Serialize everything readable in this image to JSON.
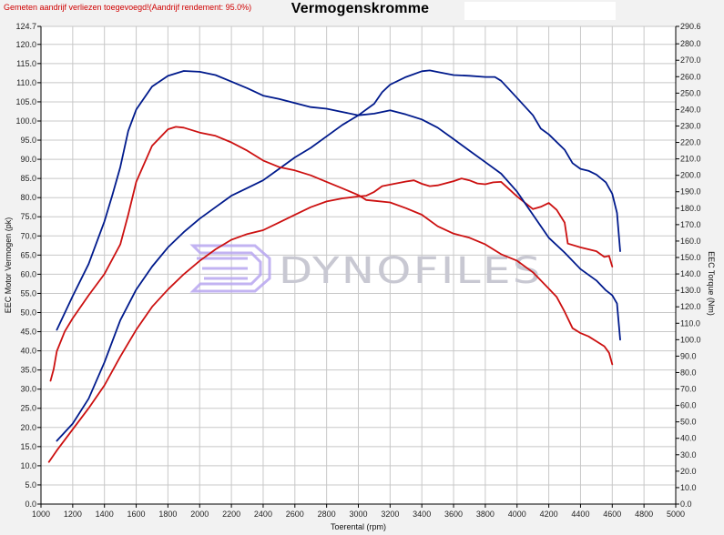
{
  "header": {
    "note": "Gemeten aandrijf verliezen toegevoegd!(Aandrijf rendement: 95.0%)",
    "title": "Vermogenskromme"
  },
  "watermark": {
    "text": "DYNOFILES"
  },
  "colors": {
    "blue": "#001a8c",
    "red": "#cc1010",
    "grid": "#c8c8c8",
    "plot_bg": "#ffffff",
    "watermark": "#c8c8d2",
    "watermark_logo": "#b8a6f0"
  },
  "chart_data": {
    "type": "line",
    "title": "Vermogenskromme",
    "xlabel": "Toerental (rpm)",
    "ylabel_left": "EEC Motor Vermogen (pk)",
    "ylabel_right": "EEC Torque (Nm)",
    "xlim": [
      1000,
      5000
    ],
    "ylim_left": [
      0,
      124.7
    ],
    "ylim_right": [
      0,
      290.6
    ],
    "grid": true,
    "x_ticks": [
      1000,
      1200,
      1400,
      1600,
      1800,
      2000,
      2200,
      2400,
      2600,
      2800,
      3000,
      3200,
      3400,
      3600,
      3800,
      4000,
      4200,
      4400,
      4600,
      4800,
      5000
    ],
    "y_left_ticks": [
      "124.7",
      "120.0",
      "115.0",
      "110.0",
      "105.0",
      "100.0",
      "95.0",
      "90.0",
      "85.0",
      "80.0",
      "75.0",
      "70.0",
      "65.0",
      "60.0",
      "55.0",
      "50.0",
      "45.0",
      "40.0",
      "35.0",
      "30.0",
      "25.0",
      "20.0",
      "15.0",
      "10.0",
      "5.0",
      "0.0"
    ],
    "y_right_ticks": [
      "290.6",
      "280.0",
      "270.0",
      "260.0",
      "250.0",
      "240.0",
      "230.0",
      "220.0",
      "210.0",
      "200.0",
      "190.0",
      "180.0",
      "170.0",
      "160.0",
      "150.0",
      "140.0",
      "130.0",
      "120.0",
      "110.0",
      "100.0",
      "90.0",
      "80.0",
      "70.0",
      "60.0",
      "50.0",
      "40.0",
      "30.0",
      "20.0",
      "10.0",
      "0.0"
    ],
    "series": [
      {
        "color": "blue",
        "axis": "left",
        "kind": "power",
        "points": [
          [
            1100,
            16.5
          ],
          [
            1200,
            21
          ],
          [
            1300,
            27.5
          ],
          [
            1400,
            37
          ],
          [
            1500,
            48
          ],
          [
            1600,
            56
          ],
          [
            1700,
            62
          ],
          [
            1800,
            67
          ],
          [
            1900,
            71
          ],
          [
            2000,
            74.5
          ],
          [
            2100,
            77.5
          ],
          [
            2200,
            80.5
          ],
          [
            2300,
            82.5
          ],
          [
            2400,
            84.5
          ],
          [
            2500,
            87.5
          ],
          [
            2600,
            90.5
          ],
          [
            2700,
            93
          ],
          [
            2800,
            96
          ],
          [
            2900,
            99
          ],
          [
            3000,
            101.5
          ],
          [
            3100,
            104.5
          ],
          [
            3150,
            107.5
          ],
          [
            3200,
            109.5
          ],
          [
            3300,
            111.5
          ],
          [
            3400,
            113
          ],
          [
            3450,
            113.2
          ],
          [
            3500,
            112.8
          ],
          [
            3600,
            112
          ],
          [
            3700,
            111.8
          ],
          [
            3800,
            111.5
          ],
          [
            3860,
            111.5
          ],
          [
            3900,
            110.5
          ],
          [
            4000,
            106
          ],
          [
            4100,
            101.5
          ],
          [
            4150,
            98
          ],
          [
            4200,
            96.5
          ],
          [
            4300,
            92.5
          ],
          [
            4350,
            89
          ],
          [
            4400,
            87.5
          ],
          [
            4450,
            87
          ],
          [
            4500,
            86
          ],
          [
            4560,
            84
          ],
          [
            4600,
            81
          ],
          [
            4630,
            76
          ],
          [
            4650,
            66
          ]
        ]
      },
      {
        "color": "red",
        "axis": "left",
        "kind": "power",
        "points": [
          [
            1050,
            11
          ],
          [
            1100,
            14
          ],
          [
            1200,
            19.5
          ],
          [
            1300,
            25
          ],
          [
            1400,
            31
          ],
          [
            1500,
            38.5
          ],
          [
            1600,
            45.5
          ],
          [
            1700,
            51.5
          ],
          [
            1800,
            56
          ],
          [
            1900,
            60
          ],
          [
            2000,
            63.5
          ],
          [
            2100,
            66.5
          ],
          [
            2200,
            69
          ],
          [
            2300,
            70.5
          ],
          [
            2400,
            71.5
          ],
          [
            2500,
            73.5
          ],
          [
            2600,
            75.5
          ],
          [
            2700,
            77.5
          ],
          [
            2800,
            79
          ],
          [
            2900,
            79.8
          ],
          [
            3000,
            80.3
          ],
          [
            3050,
            80.5
          ],
          [
            3100,
            81.5
          ],
          [
            3150,
            83
          ],
          [
            3200,
            83.4
          ],
          [
            3300,
            84.2
          ],
          [
            3350,
            84.5
          ],
          [
            3400,
            83.6
          ],
          [
            3450,
            83
          ],
          [
            3500,
            83.2
          ],
          [
            3600,
            84.3
          ],
          [
            3650,
            85
          ],
          [
            3700,
            84.5
          ],
          [
            3750,
            83.7
          ],
          [
            3800,
            83.5
          ],
          [
            3850,
            84
          ],
          [
            3900,
            84.1
          ],
          [
            4000,
            80.3
          ],
          [
            4100,
            77
          ],
          [
            4150,
            77.6
          ],
          [
            4200,
            78.6
          ],
          [
            4250,
            76.8
          ],
          [
            4300,
            73.5
          ],
          [
            4320,
            68
          ],
          [
            4400,
            67
          ],
          [
            4500,
            66
          ],
          [
            4550,
            64.5
          ],
          [
            4580,
            64.8
          ],
          [
            4600,
            62
          ]
        ]
      },
      {
        "color": "blue",
        "axis": "right",
        "kind": "torque",
        "points": [
          [
            1100,
            106
          ],
          [
            1200,
            126.5
          ],
          [
            1300,
            146
          ],
          [
            1400,
            172
          ],
          [
            1450,
            188
          ],
          [
            1500,
            205
          ],
          [
            1550,
            227
          ],
          [
            1600,
            240
          ],
          [
            1700,
            254
          ],
          [
            1800,
            260.5
          ],
          [
            1900,
            263.5
          ],
          [
            2000,
            263
          ],
          [
            2100,
            261
          ],
          [
            2200,
            257
          ],
          [
            2300,
            253
          ],
          [
            2400,
            248.5
          ],
          [
            2500,
            246.5
          ],
          [
            2600,
            244
          ],
          [
            2700,
            241.5
          ],
          [
            2800,
            240.5
          ],
          [
            2900,
            238.5
          ],
          [
            3000,
            236.5
          ],
          [
            3100,
            237.5
          ],
          [
            3200,
            239.5
          ],
          [
            3300,
            237
          ],
          [
            3400,
            234
          ],
          [
            3500,
            229
          ],
          [
            3600,
            222
          ],
          [
            3700,
            215
          ],
          [
            3800,
            208
          ],
          [
            3900,
            201
          ],
          [
            4000,
            190
          ],
          [
            4100,
            176
          ],
          [
            4200,
            162
          ],
          [
            4300,
            153
          ],
          [
            4400,
            143
          ],
          [
            4500,
            136
          ],
          [
            4560,
            130
          ],
          [
            4600,
            127
          ],
          [
            4630,
            122
          ],
          [
            4650,
            100
          ]
        ]
      },
      {
        "color": "red",
        "axis": "right",
        "kind": "torque",
        "points": [
          [
            1060,
            75
          ],
          [
            1080,
            82
          ],
          [
            1100,
            93
          ],
          [
            1150,
            105
          ],
          [
            1200,
            113
          ],
          [
            1300,
            127
          ],
          [
            1400,
            140
          ],
          [
            1500,
            158
          ],
          [
            1550,
            176
          ],
          [
            1600,
            196
          ],
          [
            1700,
            218
          ],
          [
            1800,
            228
          ],
          [
            1850,
            229.5
          ],
          [
            1900,
            229
          ],
          [
            2000,
            226
          ],
          [
            2100,
            224
          ],
          [
            2200,
            220
          ],
          [
            2300,
            215
          ],
          [
            2400,
            209
          ],
          [
            2500,
            205
          ],
          [
            2600,
            203
          ],
          [
            2700,
            200
          ],
          [
            2800,
            196
          ],
          [
            2900,
            192
          ],
          [
            3000,
            188
          ],
          [
            3050,
            185
          ],
          [
            3100,
            184.5
          ],
          [
            3200,
            183.5
          ],
          [
            3300,
            180
          ],
          [
            3400,
            176
          ],
          [
            3500,
            169
          ],
          [
            3600,
            164.5
          ],
          [
            3700,
            162
          ],
          [
            3800,
            158
          ],
          [
            3900,
            152
          ],
          [
            4000,
            148
          ],
          [
            4100,
            141
          ],
          [
            4200,
            131
          ],
          [
            4250,
            126
          ],
          [
            4300,
            117
          ],
          [
            4350,
            107
          ],
          [
            4400,
            104
          ],
          [
            4450,
            102
          ],
          [
            4500,
            99
          ],
          [
            4550,
            96
          ],
          [
            4580,
            92
          ],
          [
            4600,
            85
          ]
        ]
      }
    ]
  }
}
